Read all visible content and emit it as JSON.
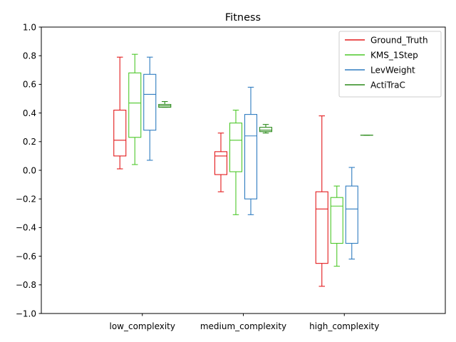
{
  "chart_data": {
    "type": "box",
    "title": "Fitness",
    "xlabel": "",
    "ylabel": "",
    "ylim": [
      -1.0,
      1.0
    ],
    "yticks": [
      "−1.0",
      "−0.8",
      "−0.6",
      "−0.4",
      "−0.2",
      "0.0",
      "0.2",
      "0.4",
      "0.6",
      "0.8",
      "1.0"
    ],
    "ytick_values": [
      -1.0,
      -0.8,
      -0.6,
      -0.4,
      -0.2,
      0.0,
      0.2,
      0.4,
      0.6,
      0.8,
      1.0
    ],
    "categories": [
      "low_complexity",
      "medium_complexity",
      "high_complexity"
    ],
    "grid": false,
    "legend_position": "top-right",
    "series": [
      {
        "name": "Ground_Truth",
        "color": "#e31a1c",
        "boxes": [
          {
            "whisker_low": 0.01,
            "q1": 0.1,
            "median": 0.21,
            "q3": 0.42,
            "whisker_high": 0.79
          },
          {
            "whisker_low": -0.15,
            "q1": -0.03,
            "median": 0.1,
            "q3": 0.13,
            "whisker_high": 0.26
          },
          {
            "whisker_low": -0.81,
            "q1": -0.65,
            "median": -0.27,
            "q3": -0.15,
            "whisker_high": 0.38
          }
        ]
      },
      {
        "name": "KMS_1Step",
        "color": "#4dc82a",
        "boxes": [
          {
            "whisker_low": 0.04,
            "q1": 0.23,
            "median": 0.47,
            "q3": 0.68,
            "whisker_high": 0.81
          },
          {
            "whisker_low": -0.31,
            "q1": -0.01,
            "median": 0.21,
            "q3": 0.33,
            "whisker_high": 0.42
          },
          {
            "whisker_low": -0.67,
            "q1": -0.51,
            "median": -0.25,
            "q3": -0.19,
            "whisker_high": -0.11
          }
        ]
      },
      {
        "name": "LevWeight",
        "color": "#2f7cc0",
        "boxes": [
          {
            "whisker_low": 0.07,
            "q1": 0.28,
            "median": 0.53,
            "q3": 0.67,
            "whisker_high": 0.79
          },
          {
            "whisker_low": -0.31,
            "q1": -0.2,
            "median": 0.24,
            "q3": 0.39,
            "whisker_high": 0.58
          },
          {
            "whisker_low": -0.62,
            "q1": -0.51,
            "median": -0.27,
            "q3": -0.11,
            "whisker_high": 0.02
          }
        ]
      },
      {
        "name": "ActiTraC",
        "color": "#2b8a1a",
        "boxes": [
          {
            "whisker_low": 0.44,
            "q1": 0.44,
            "median": 0.45,
            "q3": 0.46,
            "whisker_high": 0.48
          },
          {
            "whisker_low": 0.26,
            "q1": 0.27,
            "median": 0.28,
            "q3": 0.3,
            "whisker_high": 0.32
          },
          {
            "whisker_low": 0.245,
            "q1": 0.245,
            "median": 0.245,
            "q3": 0.245,
            "whisker_high": 0.245
          }
        ]
      }
    ]
  }
}
